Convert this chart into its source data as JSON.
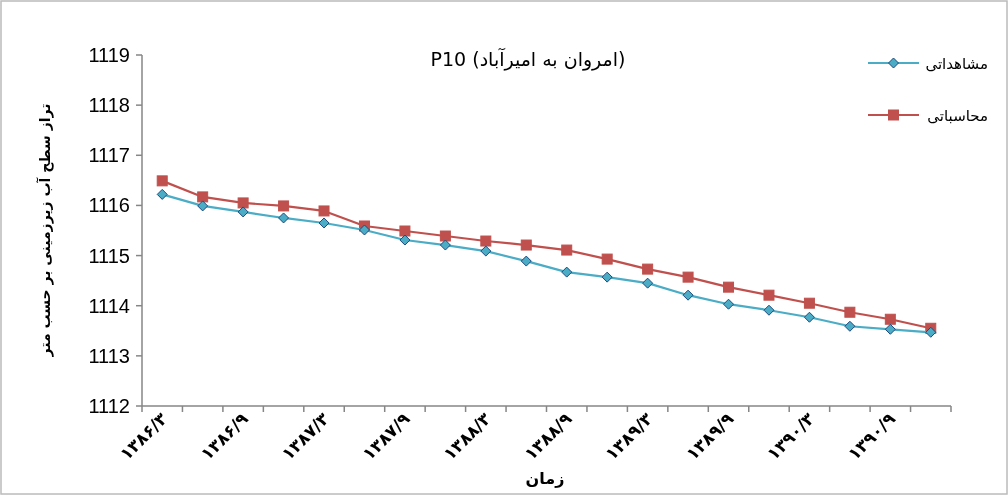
{
  "chart_data": {
    "type": "line",
    "title": "P10 (امروان به امیرآباد)",
    "xlabel": "زمان",
    "ylabel": "تراز سطح آب زیرزمینی بر حسب متر",
    "categories": [
      "۱۳۸۶/۳",
      null,
      "۱۳۸۶/۹",
      null,
      "۱۳۸۷/۳",
      null,
      "۱۳۸۷/۹",
      null,
      "۱۳۸۸/۳",
      null,
      "۱۳۸۸/۹",
      null,
      "۱۳۸۹/۳",
      null,
      "۱۳۸۹/۹",
      null,
      "۱۳۹۰/۳",
      null,
      "۱۳۹۰/۹",
      null
    ],
    "series": [
      {
        "name": "مشاهداتی",
        "color": "#4bacc6",
        "marker": "diamond",
        "values": [
          1116.22,
          1115.99,
          1115.87,
          1115.75,
          1115.65,
          1115.51,
          1115.31,
          1115.21,
          1115.09,
          1114.89,
          1114.67,
          1114.57,
          1114.45,
          1114.21,
          1114.03,
          1113.91,
          1113.77,
          1113.59,
          1113.53,
          1113.47
        ]
      },
      {
        "name": "محاسباتی",
        "color": "#c0504d",
        "marker": "square",
        "values": [
          1116.49,
          1116.17,
          1116.05,
          1115.99,
          1115.89,
          1115.59,
          1115.49,
          1115.39,
          1115.29,
          1115.21,
          1115.11,
          1114.93,
          1114.73,
          1114.57,
          1114.37,
          1114.21,
          1114.05,
          1113.87,
          1113.73,
          1113.55
        ]
      }
    ],
    "ylim": [
      1112,
      1119
    ],
    "yticks": [
      1112,
      1113,
      1114,
      1115,
      1116,
      1117,
      1118,
      1119
    ],
    "grid": false,
    "legend": "top right"
  }
}
